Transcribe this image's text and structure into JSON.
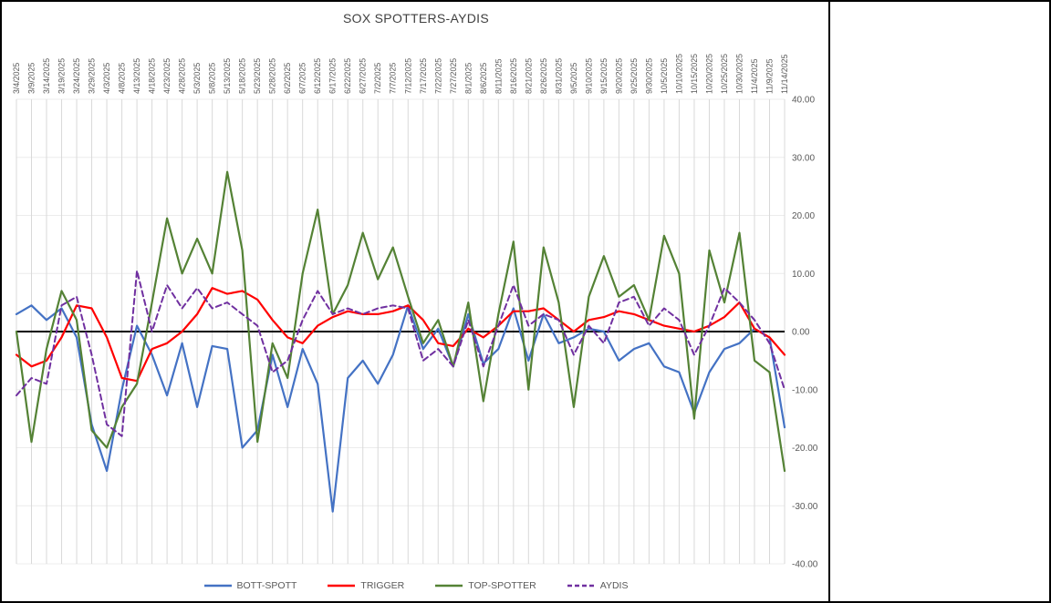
{
  "window": {
    "background": "#ffffff",
    "border_color": "#000000",
    "gridline_color": "#d9d9d9",
    "axis_line_color": "#000000",
    "label_color": "#595959",
    "title_color": "#404040"
  },
  "chart_data": {
    "type": "line",
    "title": "SOX SPOTTERS-AYDIS",
    "xlabel": "",
    "ylabel": "",
    "ylim": [
      -40,
      40
    ],
    "y_tick_step": 10,
    "y_tick_format": "0.00",
    "grid": true,
    "legend_position": "bottom",
    "categories": [
      "3/4/2025",
      "3/9/2025",
      "3/14/2025",
      "3/19/2025",
      "3/24/2025",
      "3/29/2025",
      "4/3/2025",
      "4/8/2025",
      "4/13/2025",
      "4/18/2025",
      "4/23/2025",
      "4/28/2025",
      "5/3/2025",
      "5/8/2025",
      "5/13/2025",
      "5/18/2025",
      "5/23/2025",
      "5/28/2025",
      "6/2/2025",
      "6/7/2025",
      "6/12/2025",
      "6/17/2025",
      "6/22/2025",
      "6/27/2025",
      "7/2/2025",
      "7/7/2025",
      "7/12/2025",
      "7/17/2025",
      "7/22/2025",
      "7/27/2025",
      "8/1/2025",
      "8/6/2025",
      "8/11/2025",
      "8/16/2025",
      "8/21/2025",
      "8/26/2025",
      "8/31/2025",
      "9/5/2025",
      "9/10/2025",
      "9/15/2025",
      "9/20/2025",
      "9/25/2025",
      "9/30/2025",
      "10/5/2025",
      "10/10/2025",
      "10/15/2025",
      "10/20/2025",
      "10/25/2025",
      "10/30/2025",
      "11/4/2025",
      "11/9/2025",
      "11/14/2025"
    ],
    "series": [
      {
        "name": "BOTT-SPOTT",
        "color": "#4472C4",
        "style": "solid",
        "values": [
          3,
          4.5,
          2,
          4,
          -1,
          -16,
          -24,
          -10,
          1,
          -4,
          -11,
          -2,
          -13,
          -2.5,
          -3,
          -20,
          -17,
          -4,
          -13,
          -3,
          -9,
          -31,
          -8,
          -5,
          -9,
          -4,
          4.5,
          -3,
          0.5,
          -6,
          3,
          -5.5,
          -3,
          4,
          -5,
          3,
          -2,
          -1,
          0.5,
          0,
          -5,
          -3,
          -2,
          -6,
          -7,
          -14,
          -7,
          -3,
          -2,
          0.5,
          -1,
          -16.5
        ]
      },
      {
        "name": "TRIGGER",
        "color": "#FF0000",
        "style": "solid",
        "values": [
          -4,
          -6,
          -5,
          -1,
          4.5,
          4,
          -1,
          -8,
          -8.5,
          -3,
          -2,
          0,
          3,
          7.5,
          6.5,
          7,
          5.5,
          2,
          -1,
          -2,
          1,
          2.5,
          3.5,
          3,
          3,
          3.5,
          4.5,
          2,
          -2,
          -2.5,
          0.5,
          -1,
          1,
          3.5,
          3.5,
          4,
          2,
          0,
          2,
          2.5,
          3.5,
          3,
          2,
          1,
          0.5,
          0,
          1,
          2.5,
          5,
          0.5,
          -1,
          -4
        ]
      },
      {
        "name": "TOP-SPOTTER",
        "color": "#548235",
        "style": "solid",
        "values": [
          0,
          -19,
          -3,
          7,
          2,
          -17,
          -20,
          -13,
          -9,
          5,
          19.5,
          10,
          16,
          10,
          27.5,
          14,
          -19,
          -2,
          -8,
          10,
          21,
          3,
          8,
          17,
          9,
          14.5,
          6,
          -2,
          2,
          -6,
          5,
          -12,
          3,
          15.5,
          -10,
          14.5,
          5,
          -13,
          6,
          13,
          6,
          8,
          2,
          16.5,
          10,
          -15,
          14,
          5,
          17,
          -5,
          -7,
          -24
        ]
      },
      {
        "name": "AYDIS",
        "color": "#7030A0",
        "style": "dashed",
        "values": [
          -11,
          -8,
          -9,
          4.5,
          6,
          -4,
          -16,
          -18,
          10.5,
          0,
          8,
          4,
          7.5,
          4,
          5,
          3,
          1,
          -7,
          -5,
          2,
          7,
          3,
          4,
          3,
          4,
          4.5,
          4,
          -5,
          -3,
          -6,
          2,
          -6,
          1,
          8,
          1,
          3,
          2,
          -4,
          1,
          -2,
          5,
          6,
          1,
          4,
          2,
          -4,
          1,
          7.5,
          5,
          2,
          -2,
          -10
        ]
      }
    ]
  }
}
